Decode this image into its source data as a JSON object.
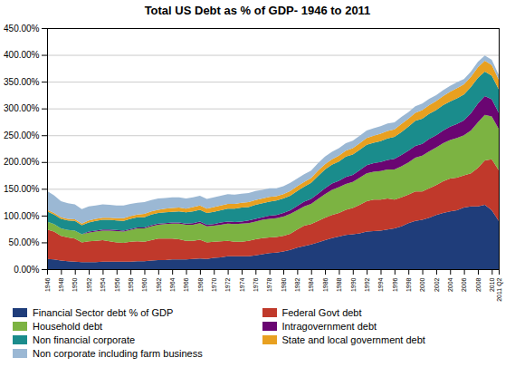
{
  "chart_data": {
    "type": "area",
    "stacked": true,
    "title": "Total US Debt as % of GDP- 1946 to 2011",
    "x": [
      1946,
      1947,
      1948,
      1949,
      1950,
      1951,
      1952,
      1953,
      1954,
      1955,
      1956,
      1957,
      1958,
      1959,
      1960,
      1961,
      1962,
      1963,
      1964,
      1965,
      1966,
      1967,
      1968,
      1969,
      1970,
      1971,
      1972,
      1973,
      1974,
      1975,
      1976,
      1977,
      1978,
      1979,
      1980,
      1981,
      1982,
      1983,
      1984,
      1985,
      1986,
      1987,
      1988,
      1989,
      1990,
      1991,
      1992,
      1993,
      1994,
      1995,
      1996,
      1997,
      1998,
      1999,
      2000,
      2001,
      2002,
      2003,
      2004,
      2005,
      2006,
      2007,
      2008,
      2009,
      2010,
      2011
    ],
    "series": [
      {
        "name": "Financial Sector debt % of GDP",
        "color": "#1F3D7A",
        "values": [
          19,
          18,
          16,
          15,
          14,
          13,
          13,
          13,
          14,
          14,
          14,
          14,
          14,
          15,
          15,
          16,
          17,
          17,
          18,
          18,
          18,
          19,
          20,
          19,
          21,
          22,
          24,
          24,
          24,
          24,
          26,
          28,
          30,
          31,
          33,
          36,
          40,
          43,
          46,
          50,
          54,
          58,
          61,
          64,
          65,
          67,
          70,
          71,
          72,
          74,
          76,
          80,
          86,
          90,
          92,
          96,
          101,
          105,
          108,
          110,
          115,
          117,
          117,
          120,
          110,
          90
        ]
      },
      {
        "name": "Federal Govt debt",
        "color": "#C0392B",
        "values": [
          55,
          52,
          46,
          44,
          43,
          37,
          39,
          40,
          40,
          38,
          36,
          35,
          37,
          37,
          36,
          38,
          40,
          40,
          39,
          38,
          35,
          34,
          35,
          31,
          30,
          30,
          29,
          27,
          27,
          29,
          30,
          30,
          29,
          29,
          29,
          30,
          34,
          38,
          38,
          40,
          42,
          43,
          44,
          47,
          49,
          53,
          57,
          59,
          58,
          58,
          54,
          54,
          53,
          55,
          53,
          55,
          56,
          59,
          61,
          61,
          60,
          62,
          72,
          83,
          95,
          95
        ]
      },
      {
        "name": "Household debt",
        "color": "#7CB342",
        "values": [
          15,
          14,
          14,
          14,
          15,
          15,
          16,
          17,
          18,
          20,
          21,
          21,
          22,
          24,
          25,
          26,
          26,
          27,
          28,
          29,
          30,
          30,
          31,
          30,
          30,
          31,
          32,
          33,
          34,
          33,
          33,
          34,
          35,
          35,
          36,
          37,
          36,
          36,
          38,
          41,
          44,
          47,
          48,
          48,
          49,
          51,
          52,
          52,
          53,
          54,
          56,
          58,
          60,
          63,
          67,
          69,
          70,
          71,
          72,
          74,
          75,
          80,
          85,
          85,
          80,
          77
        ]
      },
      {
        "name": "Intragovernment debt",
        "color": "#6A0572",
        "values": [
          0,
          0,
          0,
          0,
          0,
          0,
          2,
          2,
          2,
          2,
          2,
          2,
          2,
          2,
          2,
          2,
          2,
          2,
          2,
          2,
          2,
          3,
          3,
          3,
          3,
          4,
          4,
          4,
          4,
          5,
          5,
          5,
          6,
          6,
          7,
          7,
          8,
          9,
          9,
          10,
          11,
          12,
          12,
          13,
          13,
          14,
          15,
          16,
          17,
          18,
          20,
          21,
          22,
          22,
          22,
          23,
          23,
          24,
          25,
          26,
          28,
          32,
          35,
          35,
          32,
          30
        ]
      },
      {
        "name": "Non financial corporate",
        "color": "#1A8C8C",
        "values": [
          19,
          18,
          18,
          18,
          18,
          17,
          17,
          18,
          18,
          18,
          18,
          18,
          19,
          19,
          19,
          20,
          20,
          20,
          20,
          21,
          21,
          22,
          22,
          22,
          23,
          23,
          24,
          25,
          26,
          25,
          26,
          26,
          26,
          27,
          27,
          27,
          28,
          28,
          30,
          33,
          35,
          35,
          36,
          38,
          38,
          38,
          38,
          38,
          39,
          40,
          41,
          43,
          45,
          47,
          47,
          47,
          47,
          47,
          47,
          48,
          48,
          49,
          48,
          46,
          44,
          44
        ]
      },
      {
        "name": "State and local government debt",
        "color": "#E8A020",
        "values": [
          3,
          3,
          3,
          3,
          3,
          3,
          4,
          4,
          4,
          4,
          4,
          5,
          5,
          5,
          6,
          6,
          6,
          7,
          7,
          7,
          7,
          8,
          8,
          8,
          9,
          9,
          9,
          9,
          9,
          9,
          9,
          9,
          9,
          8,
          8,
          9,
          9,
          9,
          9,
          10,
          10,
          10,
          11,
          11,
          12,
          12,
          13,
          13,
          14,
          14,
          14,
          15,
          15,
          15,
          16,
          16,
          17,
          17,
          18,
          19,
          19,
          19,
          20,
          20,
          20,
          18
        ]
      },
      {
        "name": "Non corporate including farm business",
        "color": "#9BB8D4",
        "values": [
          35,
          33,
          30,
          29,
          28,
          27,
          26,
          25,
          25,
          24,
          24,
          24,
          23,
          22,
          22,
          21,
          21,
          20,
          20,
          19,
          19,
          18,
          18,
          18,
          18,
          18,
          18,
          17,
          17,
          17,
          17,
          16,
          16,
          15,
          15,
          15,
          14,
          14,
          14,
          14,
          14,
          14,
          14,
          14,
          14,
          14,
          14,
          14,
          14,
          14,
          13,
          13,
          12,
          12,
          12,
          12,
          11,
          11,
          11,
          11,
          10,
          10,
          10,
          10,
          10,
          9
        ]
      }
    ],
    "xlim": [
      1946,
      2011
    ],
    "xticks": [
      1946,
      1948,
      1950,
      1952,
      1954,
      1956,
      1958,
      1960,
      1962,
      1964,
      1966,
      1968,
      1970,
      1972,
      1974,
      1976,
      1978,
      1980,
      1982,
      1984,
      1986,
      1988,
      1990,
      1992,
      1994,
      1996,
      1998,
      2000,
      2002,
      2004,
      2006,
      2008,
      2010,
      {
        "value": 2011,
        "label": "2011 Q2"
      }
    ],
    "ylim": [
      0,
      450
    ],
    "yticks": [
      {
        "value": 0,
        "label": "0.00%"
      },
      {
        "value": 50,
        "label": "50.00%"
      },
      {
        "value": 100,
        "label": "100.00%"
      },
      {
        "value": 150,
        "label": "150.00%"
      },
      {
        "value": 200,
        "label": "200.00%"
      },
      {
        "value": 250,
        "label": "250.00%"
      },
      {
        "value": 300,
        "label": "300.00%"
      },
      {
        "value": 350,
        "label": "350.00%"
      },
      {
        "value": 400,
        "label": "400.00%"
      },
      {
        "value": 450,
        "label": "450.00%"
      }
    ],
    "grid": "y",
    "legend": "bottom"
  }
}
